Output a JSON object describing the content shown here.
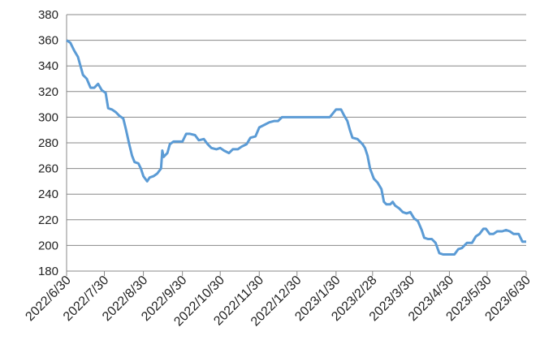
{
  "chart_data": {
    "type": "line",
    "x": [
      "2022/6/30",
      "2022/7/3",
      "2022/7/6",
      "2022/7/9",
      "2022/7/13",
      "2022/7/16",
      "2022/7/19",
      "2022/7/22",
      "2022/7/25",
      "2022/7/28",
      "2022/7/31",
      "2022/8/2",
      "2022/8/5",
      "2022/8/8",
      "2022/8/11",
      "2022/8/14",
      "2022/8/16",
      "2022/8/19",
      "2022/8/21",
      "2022/8/23",
      "2022/8/26",
      "2022/8/28",
      "2022/8/30",
      "2022/9/2",
      "2022/9/4",
      "2022/9/7",
      "2022/9/10",
      "2022/9/13",
      "2022/9/14",
      "2022/9/15",
      "2022/9/18",
      "2022/9/20",
      "2022/9/23",
      "2022/9/27",
      "2022/9/30",
      "2022/10/3",
      "2022/10/6",
      "2022/10/10",
      "2022/10/13",
      "2022/10/17",
      "2022/10/20",
      "2022/10/23",
      "2022/10/27",
      "2022/10/30",
      "2022/11/2",
      "2022/11/6",
      "2022/11/9",
      "2022/11/13",
      "2022/11/16",
      "2022/11/20",
      "2022/11/23",
      "2022/11/27",
      "2022/11/30",
      "2022/12/4",
      "2022/12/8",
      "2022/12/12",
      "2022/12/15",
      "2022/12/18",
      "2022/12/22",
      "2022/12/30",
      "2023/1/10",
      "2023/1/25",
      "2023/1/30",
      "2023/2/3",
      "2023/2/5",
      "2023/2/8",
      "2023/2/10",
      "2023/2/12",
      "2023/2/16",
      "2023/2/20",
      "2023/2/22",
      "2023/2/24",
      "2023/2/26",
      "2023/3/1",
      "2023/3/4",
      "2023/3/7",
      "2023/3/9",
      "2023/3/11",
      "2023/3/14",
      "2023/3/16",
      "2023/3/18",
      "2023/3/21",
      "2023/3/24",
      "2023/3/27",
      "2023/3/30",
      "2023/4/2",
      "2023/4/5",
      "2023/4/8",
      "2023/4/10",
      "2023/4/13",
      "2023/4/16",
      "2023/4/19",
      "2023/4/22",
      "2023/4/25",
      "2023/4/30",
      "2023/5/4",
      "2023/5/7",
      "2023/5/10",
      "2023/5/14",
      "2023/5/18",
      "2023/5/21",
      "2023/5/24",
      "2023/5/27",
      "2023/5/29",
      "2023/6/1",
      "2023/6/4",
      "2023/6/7",
      "2023/6/11",
      "2023/6/14",
      "2023/6/17",
      "2023/6/20",
      "2023/6/24",
      "2023/6/27",
      "2023/6/30"
    ],
    "series": [
      {
        "color": "#5b9bd5",
        "values": [
          360,
          358,
          352,
          347,
          333,
          330,
          323,
          323,
          326,
          321,
          319,
          307,
          306,
          304,
          301,
          299,
          291,
          278,
          270,
          265,
          264,
          260,
          254,
          250,
          253,
          254,
          256,
          260,
          274,
          269,
          272,
          279,
          281,
          281,
          281,
          287,
          287,
          286,
          282,
          283,
          279,
          276,
          275,
          276,
          274,
          272,
          275,
          275,
          277,
          279,
          284,
          285,
          292,
          294,
          296,
          297,
          297,
          300,
          300,
          300,
          300,
          300,
          306,
          306,
          302,
          297,
          290,
          284,
          283,
          279,
          276,
          270,
          260,
          252,
          249,
          244,
          234,
          232,
          232,
          234,
          231,
          229,
          226,
          225,
          226,
          221,
          219,
          212,
          206,
          205,
          205,
          202,
          194,
          193,
          193,
          193,
          197,
          198,
          202,
          202,
          207,
          209,
          213,
          213,
          209,
          209,
          211,
          211,
          212,
          211,
          209,
          209,
          203,
          203
        ]
      }
    ],
    "xlim": [
      "2022/6/30",
      "2023/6/30"
    ],
    "xticks": [
      "2022/6/30",
      "2022/7/30",
      "2022/8/30",
      "2022/9/30",
      "2022/10/30",
      "2022/11/30",
      "2022/12/30",
      "2023/1/30",
      "2023/2/28",
      "2023/3/30",
      "2023/4/30",
      "2023/5/30",
      "2023/6/30"
    ],
    "ylim": [
      180,
      380
    ],
    "yticks": [
      180,
      200,
      220,
      240,
      260,
      280,
      300,
      320,
      340,
      360,
      380
    ],
    "grid": true
  }
}
